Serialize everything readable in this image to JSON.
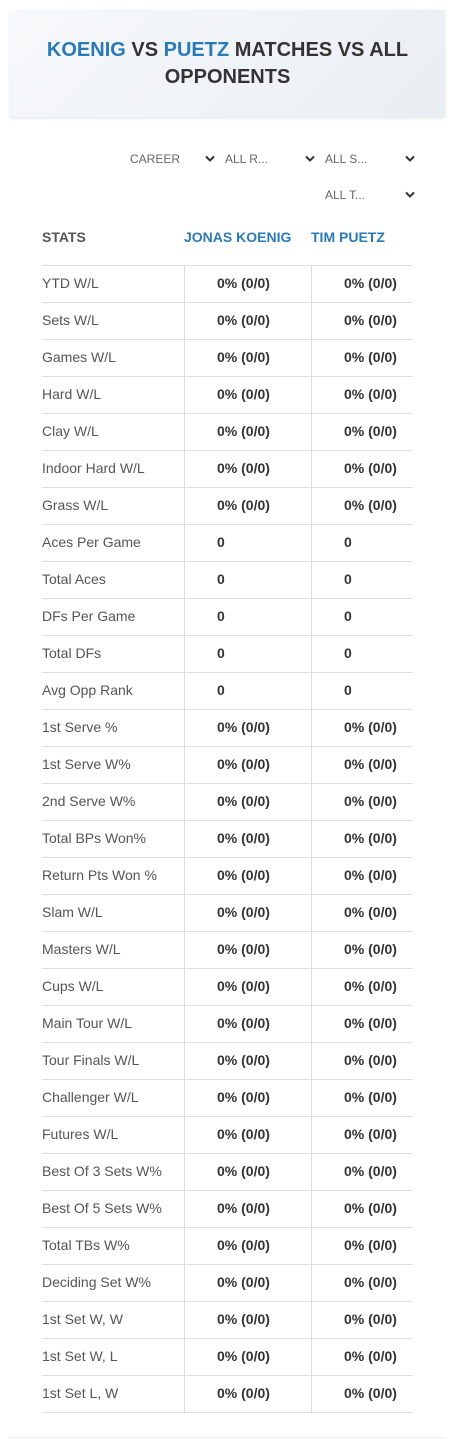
{
  "header": {
    "title": {
      "player1": "KOENIG",
      "vs": "VS",
      "player2": "PUETZ",
      "rest": "MATCHES VS ALL OPPONENTS"
    }
  },
  "filters": [
    "CAREER",
    "ALL R...",
    "ALL S...",
    "ALL T..."
  ],
  "table": {
    "columns": [
      "STATS",
      "JONAS KOENIG",
      "TIM PUETZ"
    ],
    "rows": [
      [
        "YTD W/L",
        "0% (0/0)",
        "0% (0/0)"
      ],
      [
        "Sets W/L",
        "0% (0/0)",
        "0% (0/0)"
      ],
      [
        "Games W/L",
        "0% (0/0)",
        "0% (0/0)"
      ],
      [
        "Hard W/L",
        "0% (0/0)",
        "0% (0/0)"
      ],
      [
        "Clay W/L",
        "0% (0/0)",
        "0% (0/0)"
      ],
      [
        "Indoor Hard W/L",
        "0% (0/0)",
        "0% (0/0)"
      ],
      [
        "Grass W/L",
        "0% (0/0)",
        "0% (0/0)"
      ],
      [
        "Aces Per Game",
        "0",
        "0"
      ],
      [
        "Total Aces",
        "0",
        "0"
      ],
      [
        "DFs Per Game",
        "0",
        "0"
      ],
      [
        "Total DFs",
        "0",
        "0"
      ],
      [
        "Avg Opp Rank",
        "0",
        "0"
      ],
      [
        "1st Serve %",
        "0% (0/0)",
        "0% (0/0)"
      ],
      [
        "1st Serve W%",
        "0% (0/0)",
        "0% (0/0)"
      ],
      [
        "2nd Serve W%",
        "0% (0/0)",
        "0% (0/0)"
      ],
      [
        "Total BPs Won%",
        "0% (0/0)",
        "0% (0/0)"
      ],
      [
        "Return Pts Won %",
        "0% (0/0)",
        "0% (0/0)"
      ],
      [
        "Slam W/L",
        "0% (0/0)",
        "0% (0/0)"
      ],
      [
        "Masters W/L",
        "0% (0/0)",
        "0% (0/0)"
      ],
      [
        "Cups W/L",
        "0% (0/0)",
        "0% (0/0)"
      ],
      [
        "Main Tour W/L",
        "0% (0/0)",
        "0% (0/0)"
      ],
      [
        "Tour Finals W/L",
        "0% (0/0)",
        "0% (0/0)"
      ],
      [
        "Challenger W/L",
        "0% (0/0)",
        "0% (0/0)"
      ],
      [
        "Futures W/L",
        "0% (0/0)",
        "0% (0/0)"
      ],
      [
        "Best Of 3 Sets W%",
        "0% (0/0)",
        "0% (0/0)"
      ],
      [
        "Best Of 5 Sets W%",
        "0% (0/0)",
        "0% (0/0)"
      ],
      [
        "Total TBs W%",
        "0% (0/0)",
        "0% (0/0)"
      ],
      [
        "Deciding Set W%",
        "0% (0/0)",
        "0% (0/0)"
      ],
      [
        "1st Set W, W",
        "0% (0/0)",
        "0% (0/0)"
      ],
      [
        "1st Set W, L",
        "0% (0/0)",
        "0% (0/0)"
      ],
      [
        "1st Set L, W",
        "0% (0/0)",
        "0% (0/0)"
      ]
    ]
  }
}
